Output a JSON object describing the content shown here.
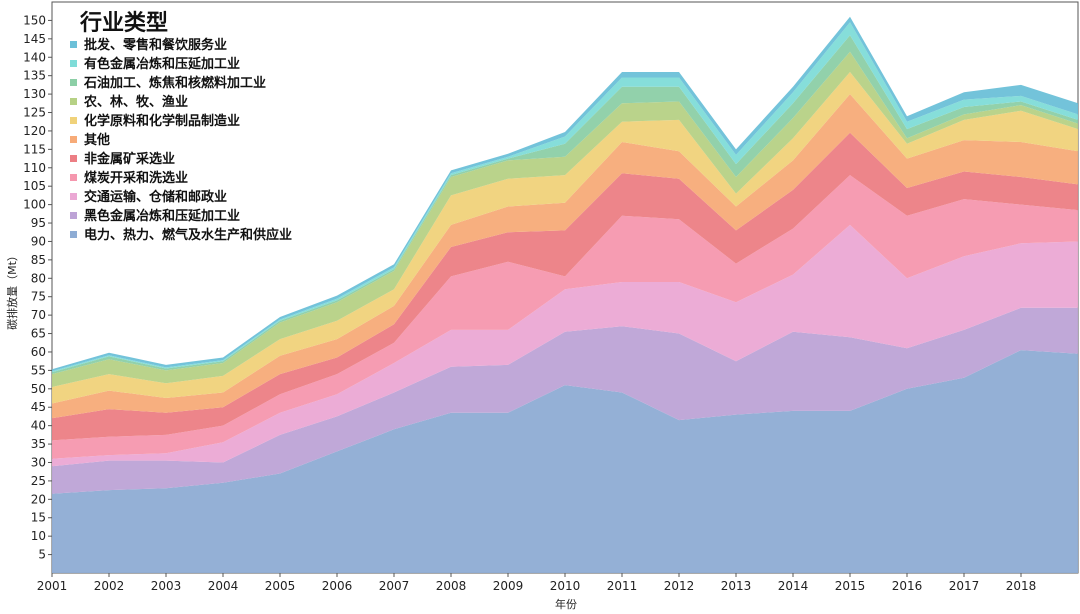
{
  "chart_data": {
    "type": "area",
    "stacked": true,
    "title": "",
    "xlabel": "年份",
    "ylabel": "碳排放量（Mt）",
    "legend_title": "行业类型",
    "legend_position": "top-left",
    "grid": false,
    "x": [
      2001,
      2002,
      2003,
      2004,
      2005,
      2006,
      2007,
      2008,
      2009,
      2010,
      2011,
      2012,
      2013,
      2014,
      2015,
      2016,
      2017,
      2018,
      2019
    ],
    "x_tick_labels": [
      "2001",
      "2002",
      "2003",
      "2004",
      "2005",
      "2006",
      "2007",
      "2008",
      "2009",
      "2010",
      "2011",
      "2012",
      "2013",
      "2014",
      "2015",
      "2016",
      "2017",
      "2018"
    ],
    "xlim": [
      2001,
      2019
    ],
    "ylim": [
      0,
      155
    ],
    "y_ticks": [
      5,
      10,
      15,
      20,
      25,
      30,
      35,
      40,
      45,
      50,
      55,
      60,
      65,
      70,
      75,
      80,
      85,
      90,
      95,
      100,
      105,
      110,
      115,
      120,
      125,
      130,
      135,
      140,
      145,
      150
    ],
    "series": [
      {
        "name": "电力、热力、燃气及水生产和供应业",
        "color": "#8eacd4",
        "values": [
          21.5,
          22.5,
          23,
          24.5,
          27,
          33,
          39,
          43.5,
          43.5,
          51,
          49,
          41.5,
          43,
          44,
          44,
          50,
          53,
          60.5,
          59.5
        ]
      },
      {
        "name": "黑色金属冶炼和压延加工业",
        "color": "#bda3d6",
        "values": [
          7.5,
          8,
          7.5,
          5.5,
          10.5,
          9.5,
          10,
          12.5,
          13,
          14.5,
          18,
          23.5,
          14.5,
          21.5,
          20,
          11,
          13,
          11.5,
          12.5
        ]
      },
      {
        "name": "交通运输、仓储和邮政业",
        "color": "#eba8d4",
        "values": [
          2,
          1.5,
          2,
          5.5,
          6,
          6,
          8,
          10,
          9.5,
          11.5,
          12,
          14,
          16,
          15.5,
          30.5,
          19,
          20,
          17.5,
          18
        ]
      },
      {
        "name": "煤炭开采和洗选业",
        "color": "#f597ae",
        "values": [
          5,
          5,
          5,
          4.5,
          5,
          5.5,
          5.5,
          14.5,
          18.5,
          3.5,
          18,
          17,
          10.5,
          12.5,
          13.5,
          17,
          15.5,
          10.5,
          8.5
        ]
      },
      {
        "name": "非金属矿采选业",
        "color": "#ec7e84",
        "values": [
          6,
          7.5,
          6,
          5,
          5.5,
          4.5,
          5,
          8,
          8,
          12.5,
          11.5,
          11,
          9,
          10.5,
          11.5,
          7.5,
          7.5,
          7.5,
          7
        ]
      },
      {
        "name": "其他",
        "color": "#f7ab78",
        "values": [
          4,
          5,
          4,
          4,
          5,
          5,
          5,
          6,
          7,
          7.5,
          8.5,
          7.5,
          6.5,
          8,
          10.5,
          8,
          8.5,
          9.5,
          9
        ]
      },
      {
        "name": "化学原料和化学制品制造业",
        "color": "#f0d27a",
        "values": [
          4.5,
          4.5,
          4,
          4.5,
          4.5,
          5,
          4.5,
          8,
          7.5,
          7.5,
          5.5,
          8.5,
          3.5,
          6,
          6,
          4,
          5.5,
          8.5,
          6
        ]
      },
      {
        "name": "农、林、牧、渔业",
        "color": "#b6d185",
        "values": [
          3.5,
          4,
          3.5,
          3.5,
          4.5,
          5,
          5,
          5,
          5,
          5,
          5,
          5,
          4.5,
          5.5,
          5.5,
          1.5,
          1.5,
          1.5,
          1.5
        ]
      },
      {
        "name": "石油加工、炼焦和核燃料加工业",
        "color": "#8ccfa6",
        "values": [
          0.5,
          0.8,
          0.5,
          0.5,
          0.5,
          0.5,
          0.5,
          0.5,
          0.5,
          3.5,
          4.5,
          4,
          3.5,
          4,
          4.5,
          2.5,
          2,
          1,
          1
        ]
      },
      {
        "name": "有色金属冶炼和压延加工业",
        "color": "#7fdcd8",
        "values": [
          0.3,
          0.3,
          0.3,
          0.3,
          0.3,
          0.5,
          0.5,
          0.5,
          0.5,
          2,
          2.5,
          2.5,
          2.5,
          3,
          3.5,
          2,
          2,
          1.5,
          1.5
        ]
      },
      {
        "name": "批发、零售和餐饮服务业",
        "color": "#6cc0d8",
        "values": [
          0.5,
          0.7,
          0.7,
          0.7,
          0.7,
          0.8,
          0.8,
          0.8,
          0.8,
          1.2,
          1.5,
          1.5,
          1.5,
          1.5,
          1.5,
          1.5,
          2,
          3,
          3
        ]
      }
    ]
  }
}
